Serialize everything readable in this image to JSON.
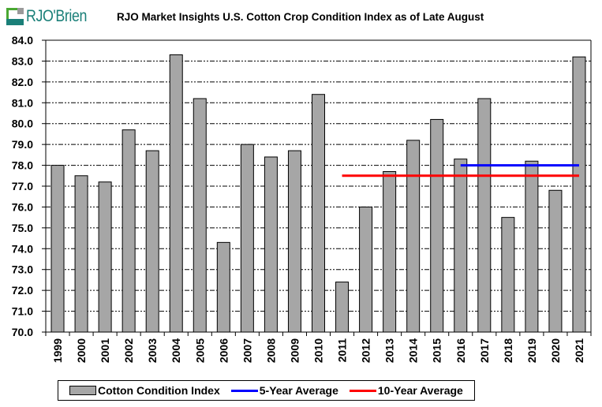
{
  "header": {
    "logo_text": "RJO'Brien",
    "title": "RJO Market Insights U.S. Cotton Crop Condition Index as of Late August"
  },
  "colors": {
    "bar_fill": "#a6a6a6",
    "bar_stroke": "#000000",
    "five_year_avg": "#0000ff",
    "ten_year_avg": "#ff0000",
    "logo_green": "#4aa832",
    "logo_teal": "#1a7f78",
    "logo_gray": "#9a9a9a"
  },
  "chart_data": {
    "type": "bar",
    "title": "RJO Market Insights U.S. Cotton Crop Condition Index as of Late August",
    "xlabel": "",
    "ylabel": "",
    "ylim": [
      70,
      84
    ],
    "ytick_step": 1,
    "ytick_labels": [
      "70.0",
      "71.0",
      "72.0",
      "73.0",
      "74.0",
      "75.0",
      "76.0",
      "77.0",
      "78.0",
      "79.0",
      "80.0",
      "81.0",
      "82.0",
      "83.0",
      "84.0"
    ],
    "grid": true,
    "legend_position": "bottom",
    "categories": [
      "1999",
      "2000",
      "2001",
      "2002",
      "2003",
      "2004",
      "2005",
      "2006",
      "2007",
      "2008",
      "2009",
      "2010",
      "2011",
      "2012",
      "2013",
      "2014",
      "2015",
      "2016",
      "2017",
      "2018",
      "2019",
      "2020",
      "2021"
    ],
    "series": [
      {
        "name": "Cotton Condition Index",
        "type": "bar",
        "values": [
          78.0,
          77.5,
          77.2,
          79.7,
          78.7,
          83.3,
          81.2,
          74.3,
          79.0,
          78.4,
          78.7,
          81.4,
          72.4,
          76.0,
          77.7,
          79.2,
          80.2,
          78.3,
          81.2,
          75.5,
          78.2,
          76.8,
          83.2
        ]
      },
      {
        "name": "5-Year Average",
        "type": "line",
        "from": "2016",
        "to": "2021",
        "value": 78.0
      },
      {
        "name": "10-Year Average",
        "type": "line",
        "from": "2011",
        "to": "2021",
        "value": 77.5
      }
    ]
  },
  "legend": {
    "items": [
      {
        "label": "Cotton Condition Index"
      },
      {
        "label": "5-Year Average"
      },
      {
        "label": "10-Year Average"
      }
    ]
  }
}
